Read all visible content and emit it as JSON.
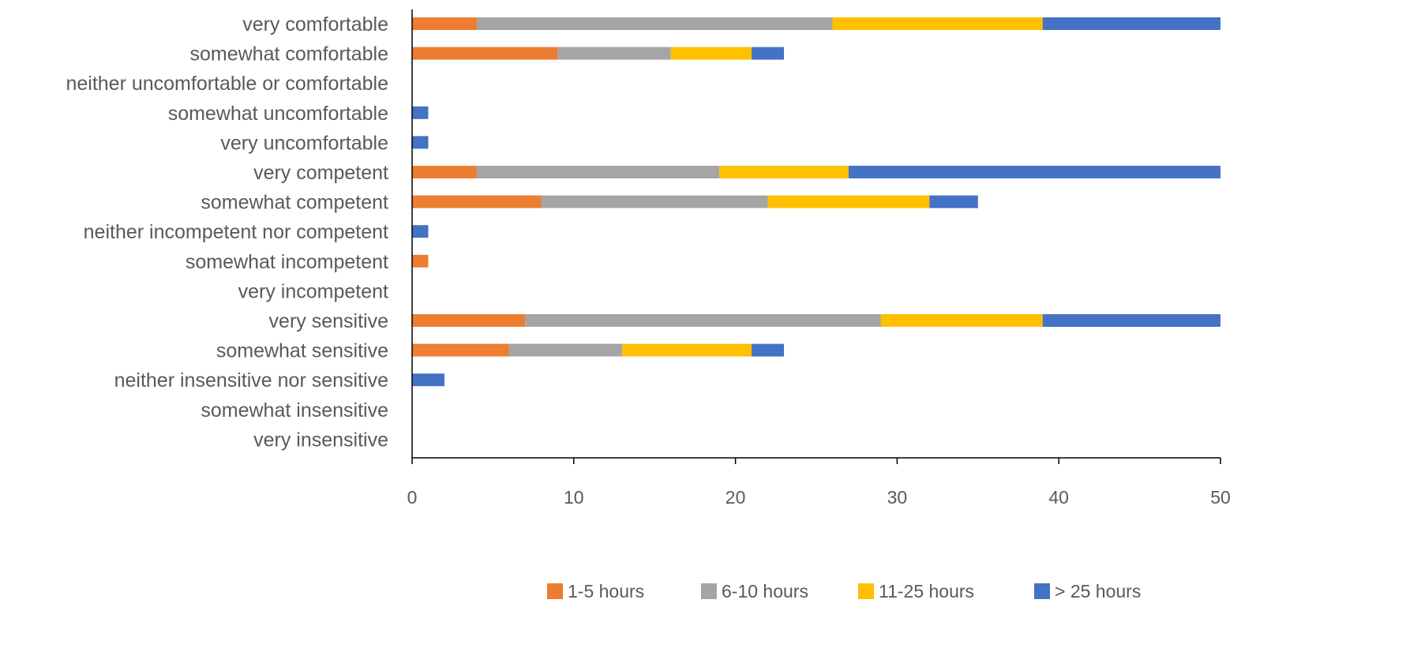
{
  "chart_data": {
    "type": "bar",
    "orientation": "horizontal",
    "stacked": true,
    "title": "",
    "xlabel": "",
    "ylabel": "",
    "categories": [
      "very comfortable",
      "somewhat comfortable",
      "neither uncomfortable or comfortable",
      "somewhat uncomfortable",
      "very uncomfortable",
      "very competent",
      "somewhat competent",
      "neither incompetent nor competent",
      "somewhat incompetent",
      "very incompetent",
      "very sensitive",
      "somewhat sensitive",
      "neither insensitive nor sensitive",
      "somewhat insensitive",
      "very insensitive"
    ],
    "series": [
      {
        "name": "1-5 hours",
        "color": "#ED7D31",
        "values": [
          4,
          9,
          0,
          0,
          0,
          4,
          8,
          0,
          1,
          0,
          7,
          6,
          0,
          0,
          0
        ]
      },
      {
        "name": "6-10 hours",
        "color": "#A5A5A5",
        "values": [
          22,
          7,
          0,
          0,
          0,
          15,
          14,
          0,
          0,
          0,
          22,
          7,
          0,
          0,
          0
        ]
      },
      {
        "name": "11-25 hours",
        "color": "#FFC000",
        "values": [
          13,
          5,
          0,
          0,
          0,
          8,
          10,
          0,
          0,
          0,
          10,
          8,
          0,
          0,
          0
        ]
      },
      {
        "name": "> 25 hours",
        "color": "#4472C4",
        "values": [
          11,
          2,
          0,
          1,
          1,
          23,
          3,
          1,
          0,
          0,
          11,
          2,
          2,
          0,
          0
        ]
      }
    ],
    "xlim": [
      0,
      50
    ],
    "xticks": [
      0,
      10,
      20,
      30,
      40,
      50
    ],
    "grid": false,
    "legend": "bottom"
  }
}
